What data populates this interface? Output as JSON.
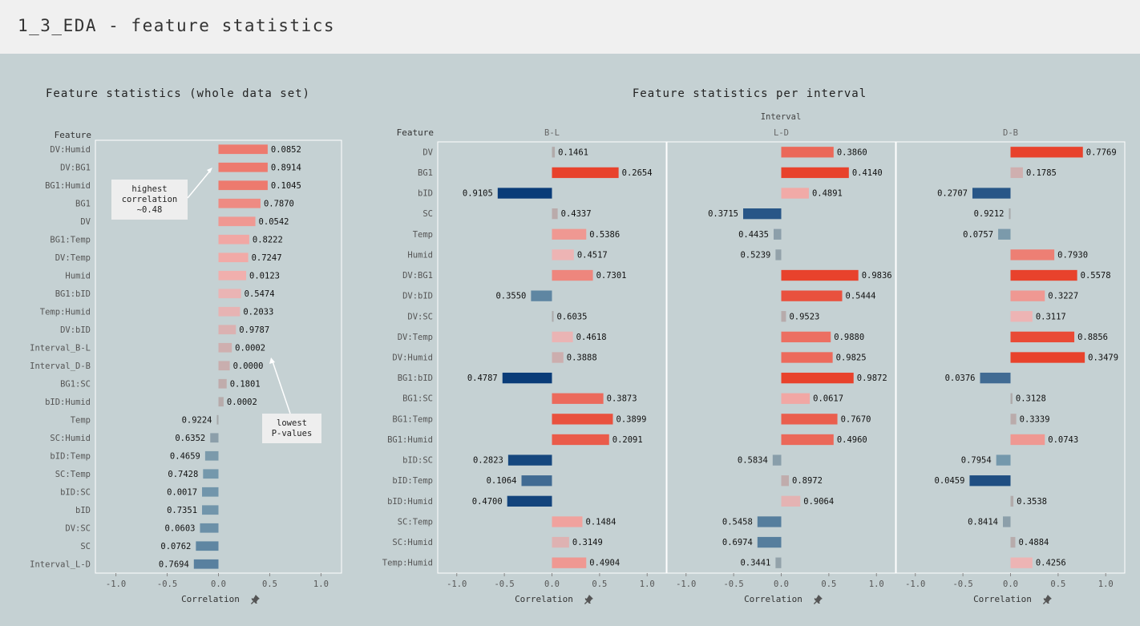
{
  "page": {
    "title": "1_3_EDA - feature statistics"
  },
  "icons": {
    "pin": "pin-icon"
  },
  "chart_data": [
    {
      "type": "bar",
      "orientation": "horizontal",
      "title": "Feature statistics (whole data set)",
      "ylabel": "Feature",
      "xlabel": "Correlation",
      "xlim": [
        -1.2,
        1.2
      ],
      "xticks": [
        -1.0,
        -0.5,
        0.0,
        0.5,
        1.0
      ],
      "xtick_labels": [
        "-1.0",
        "-0.5",
        "0.0",
        "0.5",
        "1.0"
      ],
      "grid": false,
      "features": [
        "DV:Humid",
        "DV:BG1",
        "BG1:Humid",
        "BG1",
        "DV",
        "BG1:Temp",
        "DV:Temp",
        "Humid",
        "BG1:bID",
        "Temp:Humid",
        "DV:bID",
        "Interval_B-L",
        "Interval_D-B",
        "BG1:SC",
        "bID:Humid",
        "Temp",
        "SC:Humid",
        "bID:Temp",
        "SC:Temp",
        "bID:SC",
        "bID",
        "DV:SC",
        "SC",
        "Interval_L-D"
      ],
      "correlation": [
        0.48,
        0.48,
        0.48,
        0.41,
        0.36,
        0.3,
        0.29,
        0.27,
        0.22,
        0.21,
        0.17,
        0.13,
        0.11,
        0.08,
        0.05,
        -0.01,
        -0.08,
        -0.13,
        -0.15,
        -0.16,
        -0.16,
        -0.18,
        -0.22,
        -0.24
      ],
      "p_values": [
        "0.0852",
        "0.8914",
        "0.1045",
        "0.7870",
        "0.0542",
        "0.8222",
        "0.7247",
        "0.0123",
        "0.5474",
        "0.2033",
        "0.9787",
        "0.0002",
        "0.0000",
        "0.1801",
        "0.0002",
        "0.9224",
        "0.6352",
        "0.4659",
        "0.7428",
        "0.0017",
        "0.7351",
        "0.0603",
        "0.0762",
        "0.7694"
      ],
      "annotations": [
        {
          "text": [
            "highest",
            "correlation",
            "~0.48"
          ]
        },
        {
          "text": [
            "lowest",
            "P-values"
          ]
        }
      ]
    },
    {
      "type": "bar",
      "orientation": "horizontal",
      "title": "Feature statistics per interval",
      "column_header": "Interval",
      "ylabel": "Feature",
      "xlabel": "Correlation",
      "xlim": [
        -1.2,
        1.2
      ],
      "xticks": [
        -1.0,
        -0.5,
        0.0,
        0.5,
        1.0
      ],
      "xtick_labels": [
        "-1.0",
        "-0.5",
        "0.0",
        "0.5",
        "1.0"
      ],
      "grid": false,
      "features": [
        "DV",
        "BG1",
        "bID",
        "SC",
        "Temp",
        "Humid",
        "DV:BG1",
        "DV:bID",
        "DV:SC",
        "DV:Temp",
        "DV:Humid",
        "BG1:bID",
        "BG1:SC",
        "BG1:Temp",
        "BG1:Humid",
        "bID:SC",
        "bID:Temp",
        "bID:Humid",
        "SC:Temp",
        "SC:Humid",
        "Temp:Humid"
      ],
      "series": [
        {
          "name": "B-L",
          "correlation": [
            0.03,
            0.7,
            -0.57,
            0.06,
            0.36,
            0.23,
            0.43,
            -0.22,
            0.01,
            0.22,
            0.12,
            -0.52,
            0.54,
            0.64,
            0.6,
            -0.46,
            -0.32,
            -0.47,
            0.32,
            0.18,
            0.36
          ],
          "p_values": [
            "0.1461",
            "0.2654",
            "0.9105",
            "0.4337",
            "0.5386",
            "0.4517",
            "0.7301",
            "0.3550",
            "0.6035",
            "0.4618",
            "0.3888",
            "0.4787",
            "0.3873",
            "0.3899",
            "0.2091",
            "0.2823",
            "0.1064",
            "0.4700",
            "0.1484",
            "0.3149",
            "0.4904"
          ]
        },
        {
          "name": "L-D",
          "correlation": [
            0.55,
            0.71,
            0.29,
            -0.4,
            -0.08,
            -0.06,
            0.81,
            0.64,
            0.05,
            0.52,
            0.54,
            0.76,
            0.3,
            0.59,
            0.55,
            -0.09,
            0.08,
            0.2,
            -0.25,
            -0.25,
            -0.06
          ],
          "p_values": [
            "0.3860",
            "0.4140",
            "0.4891",
            "0.3715",
            "0.4435",
            "0.5239",
            "0.9836",
            "0.5444",
            "0.9523",
            "0.9880",
            "0.9825",
            "0.9872",
            "0.0617",
            "0.7670",
            "0.4960",
            "0.5834",
            "0.8972",
            "0.9064",
            "0.5458",
            "0.6974",
            "0.3441"
          ]
        },
        {
          "name": "D-B",
          "correlation": [
            0.76,
            0.13,
            -0.4,
            -0.01,
            -0.13,
            0.46,
            0.7,
            0.36,
            0.23,
            0.67,
            0.78,
            -0.32,
            0.02,
            0.06,
            0.36,
            -0.15,
            -0.43,
            0.03,
            -0.08,
            0.05,
            0.23
          ],
          "p_values": [
            "0.7769",
            "0.1785",
            "0.2707",
            "0.9212",
            "0.0757",
            "0.7930",
            "0.5578",
            "0.3227",
            "0.3117",
            "0.8856",
            "0.3479",
            "0.0376",
            "0.3128",
            "0.3339",
            "0.0743",
            "0.7954",
            "0.0459",
            "0.3538",
            "0.8414",
            "0.4884",
            "0.4256"
          ]
        }
      ]
    }
  ]
}
